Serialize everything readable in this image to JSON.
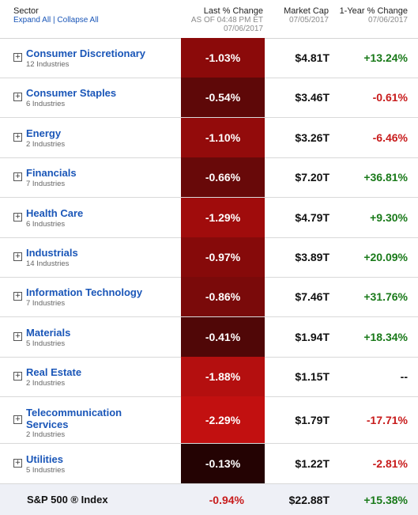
{
  "header": {
    "sector_label": "Sector",
    "expand_all": "Expand All",
    "separator": " | ",
    "collapse_all": "Collapse All",
    "last_change_label": "Last % Change",
    "last_change_asof": "AS OF 04:48 PM ET",
    "last_change_date": "07/06/2017",
    "market_cap_label": "Market Cap",
    "market_cap_date": "07/05/2017",
    "one_year_label": "1-Year % Change",
    "one_year_date": "07/06/2017"
  },
  "toggle_symbol": "+",
  "rows": [
    {
      "name": "Consumer Discretionary",
      "industries": "12 Industries",
      "change": "-1.03%",
      "market_cap": "$4.81T",
      "one_year": "+13.24%",
      "one_year_sign": "pos",
      "cell_color": "#8b0a0a"
    },
    {
      "name": "Consumer Staples",
      "industries": "6 Industries",
      "change": "-0.54%",
      "market_cap": "$3.46T",
      "one_year": "-0.61%",
      "one_year_sign": "neg",
      "cell_color": "#5e0808"
    },
    {
      "name": "Energy",
      "industries": "2 Industries",
      "change": "-1.10%",
      "market_cap": "$3.26T",
      "one_year": "-6.46%",
      "one_year_sign": "neg",
      "cell_color": "#930b0b"
    },
    {
      "name": "Financials",
      "industries": "7 Industries",
      "change": "-0.66%",
      "market_cap": "$7.20T",
      "one_year": "+36.81%",
      "one_year_sign": "pos",
      "cell_color": "#680909"
    },
    {
      "name": "Health Care",
      "industries": "6 Industries",
      "change": "-1.29%",
      "market_cap": "$4.79T",
      "one_year": "+9.30%",
      "one_year_sign": "pos",
      "cell_color": "#a00c0c"
    },
    {
      "name": "Industrials",
      "industries": "14 Industries",
      "change": "-0.97%",
      "market_cap": "$3.89T",
      "one_year": "+20.09%",
      "one_year_sign": "pos",
      "cell_color": "#860a0a"
    },
    {
      "name": "Information Technology",
      "industries": "7 Industries",
      "change": "-0.86%",
      "market_cap": "$7.46T",
      "one_year": "+31.76%",
      "one_year_sign": "pos",
      "cell_color": "#7a0a0a"
    },
    {
      "name": "Materials",
      "industries": "5 Industries",
      "change": "-0.41%",
      "market_cap": "$1.94T",
      "one_year": "+18.34%",
      "one_year_sign": "pos",
      "cell_color": "#500707"
    },
    {
      "name": "Real Estate",
      "industries": "2 Industries",
      "change": "-1.88%",
      "market_cap": "$1.15T",
      "one_year": "--",
      "one_year_sign": "neu",
      "cell_color": "#b40f0f"
    },
    {
      "name": "Telecommunication Services",
      "industries": "2 Industries",
      "change": "-2.29%",
      "market_cap": "$1.79T",
      "one_year": "-17.71%",
      "one_year_sign": "neg",
      "cell_color": "#c21010"
    },
    {
      "name": "Utilities",
      "industries": "5 Industries",
      "change": "-0.13%",
      "market_cap": "$1.22T",
      "one_year": "-2.81%",
      "one_year_sign": "neg",
      "cell_color": "#240303"
    }
  ],
  "footer": {
    "label": "S&P 500 ® Index",
    "change": "-0.94%",
    "market_cap": "$22.88T",
    "one_year": "+15.38%"
  }
}
